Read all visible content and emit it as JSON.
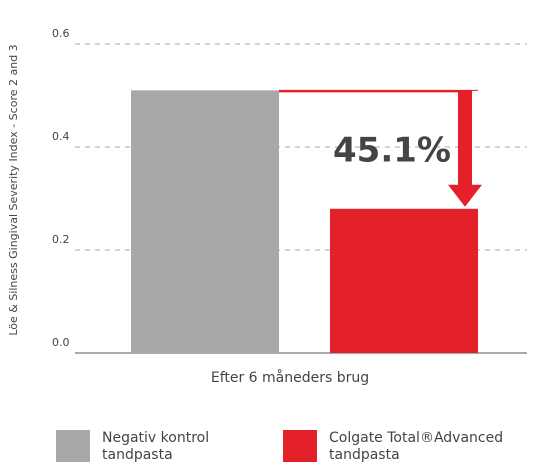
{
  "chart_data": {
    "type": "bar",
    "ylabel": "Löe & Silness Gingival Severity Index - Score 2 and 3",
    "categories": [
      "Efter 6 måneders brug"
    ],
    "series": [
      {
        "name": "Negativ kontrol tandpasta",
        "color": "#a7a8aa",
        "values": [
          0.51
        ]
      },
      {
        "name": "Colgate Total®Advanced tandpasta",
        "color": "#e4202a",
        "values": [
          0.28
        ]
      }
    ],
    "annotation": "45.1%",
    "ylim": [
      0,
      0.6
    ],
    "yticks": [
      {
        "value": 0,
        "label": "0.0"
      },
      0.2,
      0.4,
      0.6
    ],
    "grid": true
  }
}
